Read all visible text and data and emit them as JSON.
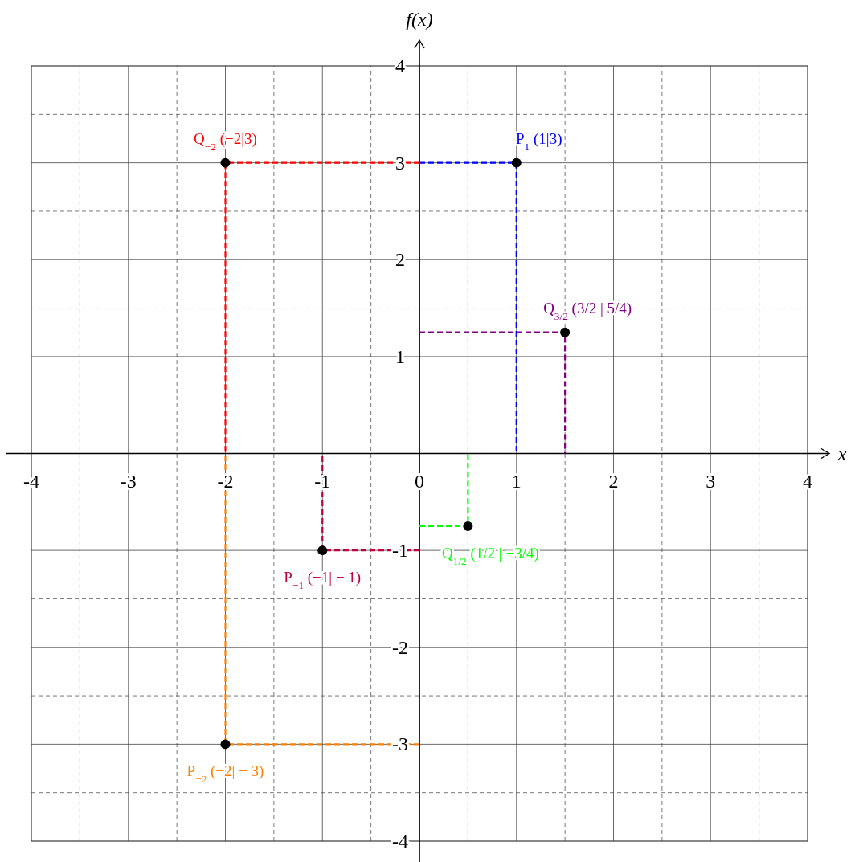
{
  "chart_data": {
    "type": "line",
    "xlabel": "x",
    "ylabel": "f(x)",
    "xlim": [
      -4,
      4
    ],
    "ylim": [
      -4,
      4
    ],
    "xticks": [
      {
        "value": -4,
        "label": "-4"
      },
      {
        "value": -3,
        "label": "-3"
      },
      {
        "value": -2,
        "label": "-2"
      },
      {
        "value": -1,
        "label": "-1"
      },
      0,
      1,
      2,
      3,
      4
    ],
    "yticks": [
      {
        "value": -4,
        "label": "-4"
      },
      {
        "value": -3,
        "label": "-3"
      },
      {
        "value": -2,
        "label": "-2"
      },
      {
        "value": -1,
        "label": "-1"
      },
      1,
      2,
      3,
      4
    ],
    "grid": true,
    "line_style": "dashed",
    "marker": "none",
    "series": [
      {
        "name": "Q$_{−2}$ (−2|3)",
        "color": "#ff0000",
        "x": [
          0,
          -2,
          -2
        ],
        "values": [
          3,
          3,
          0
        ]
      },
      {
        "name": "P$_{1}$ (1|3)",
        "color": "#0000ff",
        "x": [
          0,
          1,
          1
        ],
        "values": [
          3,
          3,
          0
        ]
      },
      {
        "name": "Q$_{3/2}$ (3/2 | 5/4)",
        "color": "#800080",
        "x": [
          0,
          1.5,
          1.5
        ],
        "values": [
          1.25,
          1.25,
          0
        ]
      },
      {
        "name": "Q$_{1/2}$ (1/2 | −3/4)",
        "color": "#00ff00",
        "x": [
          0,
          0.5,
          0.5
        ],
        "values": [
          -0.75,
          -0.75,
          0
        ]
      },
      {
        "name": "P$_{−1}$ (−1| − 1)",
        "color": "#bf0040",
        "x": [
          0,
          -1,
          -1
        ],
        "values": [
          -1,
          -1,
          0
        ]
      },
      {
        "name": "P$_{−2}$ (−2| − 3)",
        "color": "#ff8000",
        "x": [
          0,
          -2,
          -2
        ],
        "values": [
          -3,
          -3,
          0
        ]
      },
      {
        "type": "scatter",
        "color": "#000000",
        "marker": "circle",
        "x": [
          -2,
          1,
          1.5,
          0.5,
          -1,
          -2
        ],
        "values": [
          3,
          3,
          1.25,
          -0.75,
          -1,
          -3
        ]
      }
    ]
  }
}
